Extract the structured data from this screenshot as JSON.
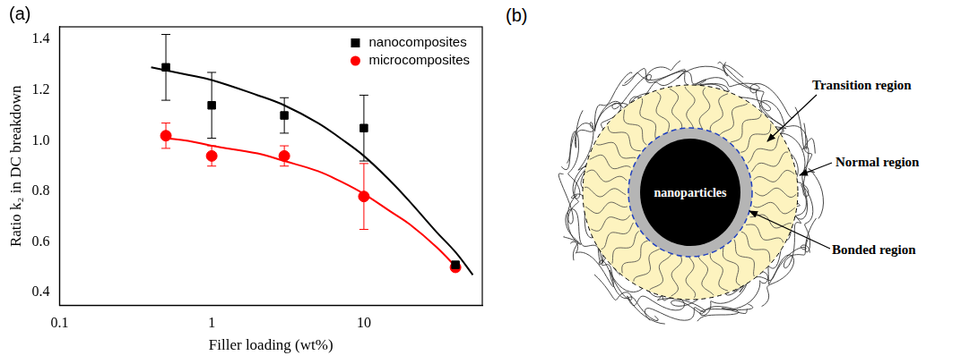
{
  "chart_data": {
    "type": "scatter",
    "panel": "(a)",
    "x_label": "Filler loading (wt%)",
    "y_label": "Ratio k₂ in DC breakdown",
    "log": "x",
    "grid": false,
    "legend": "upper right",
    "xlim": [
      0.1,
      60
    ],
    "xticks": [
      0.1,
      1,
      10
    ],
    "ylim": [
      0.35,
      1.45
    ],
    "yticks": [
      0.4,
      0.6,
      0.8,
      {
        "value": 1,
        "label": "1.0"
      },
      1.2,
      1.4
    ],
    "series": [
      {
        "name": "nanocomposites",
        "color": "#000000",
        "marker": "square",
        "x": [
          0.5,
          1,
          3,
          10,
          40
        ],
        "values": [
          1.29,
          1.14,
          1.1,
          1.05,
          0.51
        ],
        "errors": [
          0.13,
          0.13,
          0.07,
          0.13,
          null
        ],
        "fit": {
          "line_style": "solid",
          "x": [
            0.4,
            0.7,
            1,
            2,
            3,
            5,
            7,
            10,
            15,
            20,
            30,
            40,
            52
          ],
          "values": [
            1.29,
            1.26,
            1.24,
            1.18,
            1.14,
            1.07,
            1.01,
            0.94,
            0.84,
            0.76,
            0.64,
            0.56,
            0.47
          ]
        }
      },
      {
        "name": "microcomposites",
        "color": "#ff0000",
        "marker": "circle",
        "x": [
          0.5,
          1,
          3,
          10,
          40
        ],
        "values": [
          1.02,
          0.94,
          0.94,
          0.78,
          0.5
        ],
        "errors": [
          0.05,
          0.04,
          0.04,
          0.13,
          null
        ],
        "fit": {
          "line_style": "solid",
          "x": [
            0.5,
            0.7,
            1,
            2,
            3,
            5,
            7,
            10,
            15,
            20,
            30,
            42
          ],
          "values": [
            1.01,
            1.0,
            0.98,
            0.95,
            0.92,
            0.88,
            0.84,
            0.79,
            0.72,
            0.67,
            0.58,
            0.49
          ]
        }
      }
    ]
  },
  "diagram": {
    "panel": "(b)",
    "center_label": "nanoparticles",
    "labels": {
      "transition": "Transition region",
      "normal": "Normal region",
      "bonded": "Bonded region"
    }
  }
}
